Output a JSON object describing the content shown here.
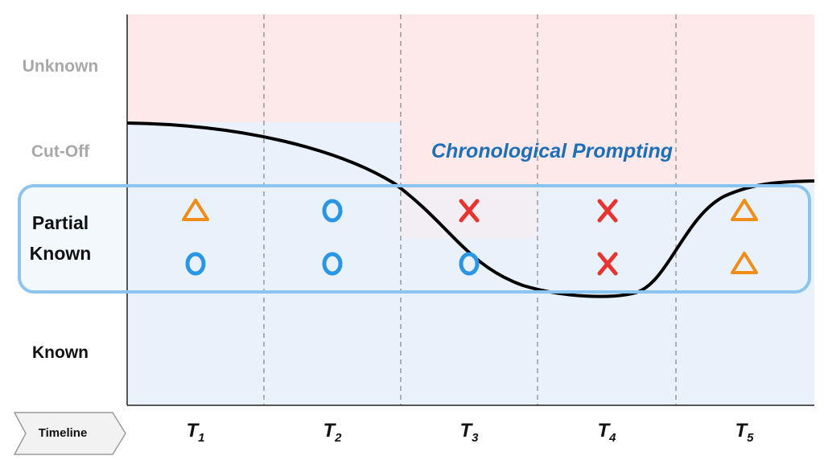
{
  "y_levels": {
    "unknown": "Unknown",
    "cutoff": "Cut-Off",
    "partial_line1": "Partial",
    "partial_line2": "Known",
    "known": "Known"
  },
  "timeline_label": "Timeline",
  "time_points": [
    {
      "base": "T",
      "sub": "1"
    },
    {
      "base": "T",
      "sub": "2"
    },
    {
      "base": "T",
      "sub": "3"
    },
    {
      "base": "T",
      "sub": "4"
    },
    {
      "base": "T",
      "sub": "5"
    }
  ],
  "prompt_label": "Chronological Prompting",
  "markers": {
    "row1": [
      "triangle",
      "circle",
      "cross",
      "cross",
      "triangle"
    ],
    "row2": [
      "circle",
      "circle",
      "circle",
      "cross",
      "triangle"
    ]
  },
  "colors": {
    "unknown_fill": "#fde9e9",
    "known_fill": "#e9f1fb",
    "circle": "#2a96e4",
    "cross": "#e8332f",
    "triangle": "#f08c18",
    "band_border": "#8cc4f0",
    "prompt_text": "#1c6fb8"
  }
}
